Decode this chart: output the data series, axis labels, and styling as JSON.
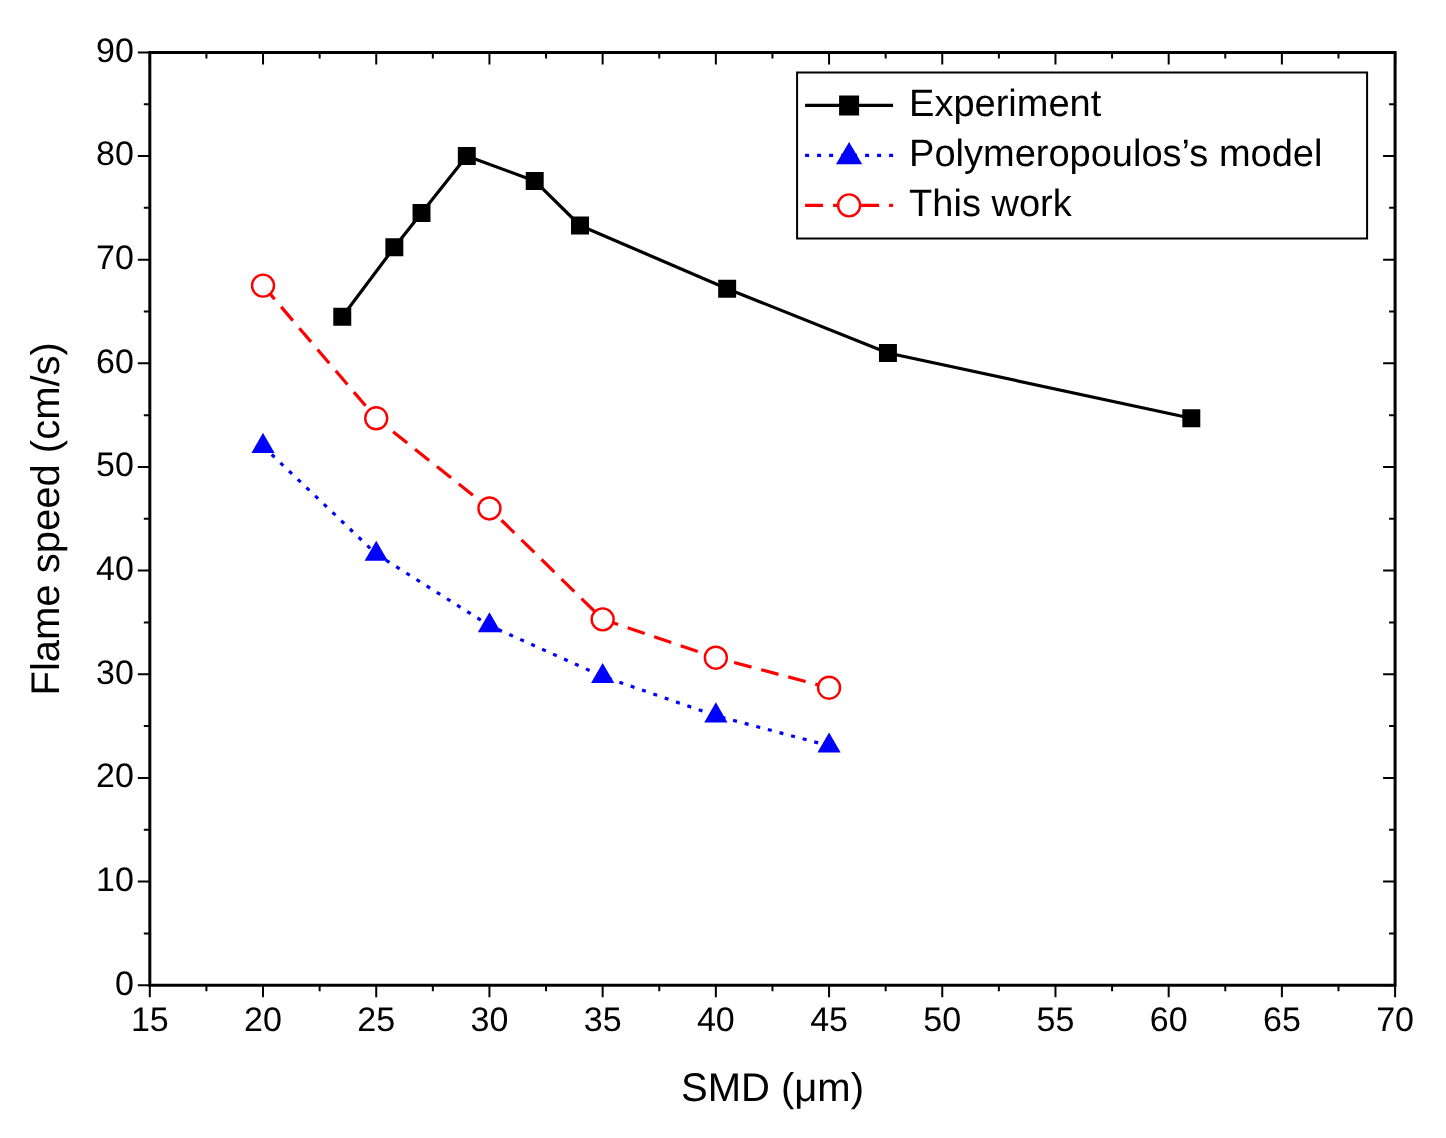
{
  "chart_data": {
    "type": "line",
    "xlabel": "SMD (μm)",
    "ylabel": "Flame speed (cm/s)",
    "xlim": [
      15,
      70
    ],
    "xticks": [
      15,
      20,
      25,
      30,
      35,
      40,
      45,
      50,
      55,
      60,
      65,
      70
    ],
    "ylim": [
      0,
      90
    ],
    "yticks": [
      0,
      10,
      20,
      30,
      40,
      50,
      60,
      70,
      80,
      90
    ],
    "grid": false,
    "legend": "top right",
    "series": [
      {
        "name": "Experiment",
        "color": "#000000",
        "marker": "square",
        "line_style": "solid",
        "x": [
          23.5,
          25.8,
          27,
          29,
          32,
          34,
          40.5,
          47.6,
          61
        ],
        "values": [
          64.5,
          71.2,
          74.5,
          80,
          77.6,
          73.3,
          67.2,
          61,
          54.7
        ]
      },
      {
        "name": "Polymeropoulos’s model",
        "color": "#0000ff",
        "marker": "triangle",
        "line_style": "dotted",
        "x": [
          20,
          25,
          30,
          35,
          40,
          45
        ],
        "values": [
          52,
          41.6,
          34.7,
          29.8,
          26,
          23.1
        ]
      },
      {
        "name": "This work",
        "color": "#ff0000",
        "marker": "circle",
        "line_style": "dashed",
        "x": [
          20,
          25,
          30,
          35,
          40,
          45
        ],
        "values": [
          67.5,
          54.7,
          46,
          35.3,
          31.6,
          28.7
        ]
      }
    ]
  }
}
